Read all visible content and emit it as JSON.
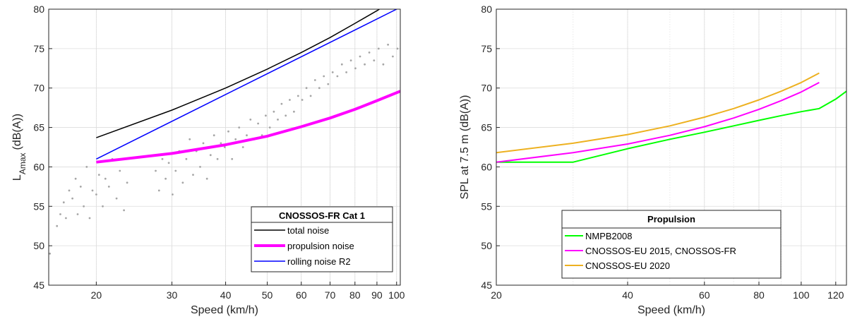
{
  "chart_data": [
    {
      "type": "line",
      "xscale": "log",
      "xlim": [
        15.5,
        102
      ],
      "ylim": [
        45,
        80
      ],
      "xlabel": "Speed (km/h)",
      "ylabel_main": "L",
      "ylabel_sub": "Amax",
      "ylabel_unit": "(dB(A))",
      "xticks": [
        20,
        30,
        40,
        50,
        60,
        70,
        80,
        90,
        100
      ],
      "xtick_labels": [
        "20",
        "30",
        "40",
        "50",
        "60",
        "70",
        "80",
        "90",
        "100"
      ],
      "yticks": [
        45,
        50,
        55,
        60,
        65,
        70,
        75,
        80
      ],
      "ytick_labels": [
        "45",
        "50",
        "55",
        "60",
        "65",
        "70",
        "75",
        "80"
      ],
      "grid": true,
      "legend": {
        "title": "CNOSSOS-FR Cat 1",
        "placement": "bottom-right"
      },
      "series": [
        {
          "name": "total noise",
          "color": "#000000",
          "width": 1.5,
          "x": [
            20,
            30,
            40,
            50,
            60,
            70,
            80,
            90,
            95
          ],
          "y": [
            63.7,
            67.2,
            70.0,
            72.4,
            74.5,
            76.4,
            78.2,
            79.8,
            80.6
          ]
        },
        {
          "name": "propulsion noise",
          "color": "#ff00ff",
          "width": 4,
          "x": [
            20,
            30,
            40,
            50,
            60,
            70,
            80,
            90,
            102
          ],
          "y": [
            60.6,
            61.7,
            62.8,
            63.9,
            65.1,
            66.2,
            67.3,
            68.4,
            69.6
          ]
        },
        {
          "name": "rolling noise R2",
          "color": "#0000ff",
          "width": 1.5,
          "x": [
            20,
            100
          ],
          "y": [
            61.0,
            80.0
          ]
        }
      ],
      "scatter": {
        "color": "#a6a6a6",
        "x": [
          15.6,
          16.2,
          16.5,
          16.8,
          17.0,
          17.3,
          17.6,
          17.9,
          18.1,
          18.4,
          18.7,
          19.0,
          19.3,
          19.6,
          20.0,
          20.3,
          20.7,
          21.0,
          21.4,
          21.8,
          22.3,
          22.7,
          23.2,
          23.6,
          27.5,
          28.0,
          28.5,
          29.0,
          29.5,
          30.1,
          30.6,
          31.2,
          31.8,
          32.4,
          33.0,
          33.6,
          34.2,
          34.9,
          35.5,
          36.2,
          36.9,
          37.6,
          38.3,
          39.0,
          39.8,
          40.6,
          41.4,
          42.2,
          43.0,
          43.9,
          44.8,
          45.7,
          46.6,
          47.6,
          48.6,
          49.6,
          50.7,
          51.8,
          52.9,
          54.0,
          55.2,
          56.4,
          57.7,
          59.0,
          60.3,
          61.7,
          63.1,
          64.6,
          66.1,
          67.7,
          69.3,
          71.0,
          72.8,
          74.6,
          76.4,
          78.3,
          80.2,
          82.2,
          84.3,
          86.4,
          88.6,
          90.8,
          93.1,
          95.5,
          98.0,
          100.5
        ],
        "y": [
          49.0,
          52.5,
          54.0,
          55.5,
          53.5,
          57.0,
          56.0,
          58.5,
          54.0,
          57.5,
          55.0,
          60.0,
          53.5,
          57.0,
          56.5,
          59.0,
          55.0,
          58.5,
          57.5,
          61.0,
          56.0,
          59.5,
          54.5,
          58.0,
          59.5,
          57.0,
          61.0,
          58.5,
          60.5,
          56.5,
          59.5,
          62.0,
          58.0,
          61.0,
          63.5,
          59.0,
          62.0,
          60.0,
          63.0,
          58.5,
          61.5,
          64.0,
          61.0,
          63.0,
          62.5,
          64.5,
          61.0,
          63.5,
          65.0,
          62.5,
          64.0,
          66.0,
          63.5,
          65.5,
          64.0,
          66.5,
          65.0,
          67.0,
          66.0,
          68.0,
          66.5,
          68.5,
          67.0,
          69.0,
          68.5,
          70.0,
          69.0,
          71.0,
          70.0,
          71.5,
          70.5,
          72.0,
          71.5,
          73.0,
          72.0,
          73.5,
          72.5,
          74.0,
          73.0,
          74.5,
          73.5,
          75.0,
          73.0,
          75.5,
          74.0,
          75.0
        ]
      }
    },
    {
      "type": "line",
      "xscale": "log",
      "xlim": [
        20,
        127
      ],
      "ylim": [
        45,
        80
      ],
      "xlabel": "Speed (km/h)",
      "ylabel": "SPL at 7.5 m (dB(A))",
      "xticks": [
        20,
        40,
        60,
        80,
        100,
        120
      ],
      "xtick_labels": [
        "20",
        "40",
        "60",
        "80",
        "100",
        "120"
      ],
      "yticks": [
        45,
        50,
        55,
        60,
        65,
        70,
        75,
        80
      ],
      "ytick_labels": [
        "45",
        "50",
        "55",
        "60",
        "65",
        "70",
        "75",
        "80"
      ],
      "grid": true,
      "legend": {
        "title": "Propulsion",
        "placement": "bottom-left"
      },
      "series": [
        {
          "name": "NMPB2008",
          "color": "#00ff00",
          "width": 2,
          "x": [
            20,
            30,
            40,
            50,
            60,
            70,
            80,
            90,
            100,
            110,
            120,
            127
          ],
          "y": [
            60.6,
            60.6,
            62.3,
            63.5,
            64.4,
            65.2,
            65.9,
            66.5,
            67.0,
            67.4,
            68.6,
            69.6
          ]
        },
        {
          "name": "CNOSSOS-EU 2015, CNOSSOS-FR",
          "color": "#ff00ff",
          "width": 2,
          "x": [
            20,
            30,
            40,
            50,
            60,
            70,
            80,
            90,
            100,
            110
          ],
          "y": [
            60.6,
            61.8,
            62.9,
            64.0,
            65.1,
            66.2,
            67.3,
            68.4,
            69.5,
            70.7
          ]
        },
        {
          "name": "CNOSSOS-EU 2020",
          "color": "#edb120",
          "width": 2,
          "x": [
            20,
            30,
            40,
            50,
            60,
            70,
            80,
            90,
            100,
            110
          ],
          "y": [
            61.8,
            63.0,
            64.1,
            65.2,
            66.3,
            67.4,
            68.5,
            69.6,
            70.7,
            71.9
          ]
        }
      ]
    }
  ]
}
